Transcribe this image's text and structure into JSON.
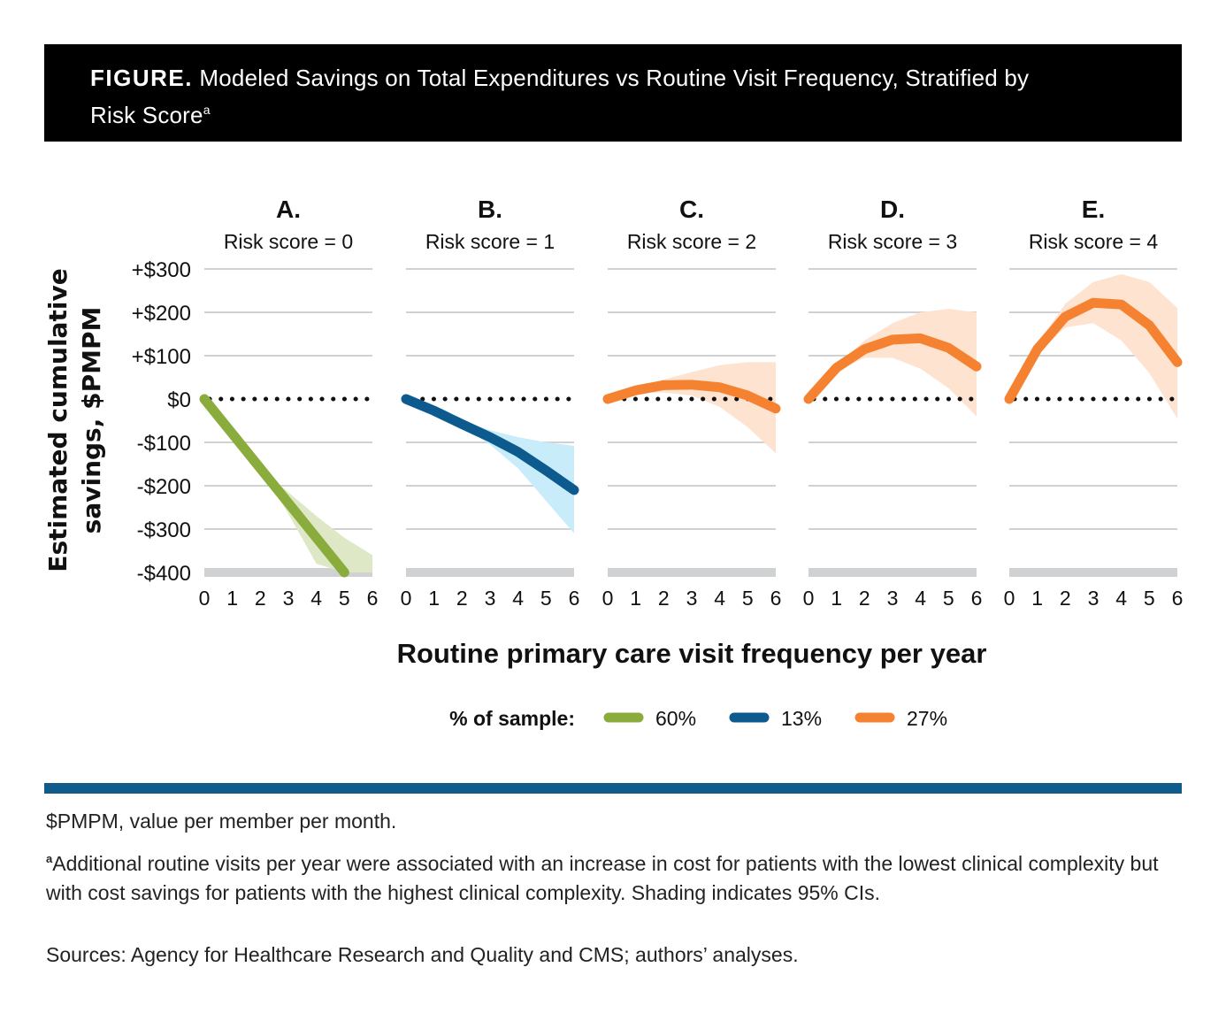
{
  "header": {
    "figure_label": "FIGURE.",
    "title": "Modeled Savings on Total Expenditures vs Routine Visit Frequency, Stratified by",
    "title_line2": "Risk Score",
    "title_superscript": "a"
  },
  "chart_data": {
    "type": "line",
    "title": "Modeled Savings on Total Expenditures vs Routine Visit Frequency, Stratified by Risk Score",
    "ylabel_line1": "Estimated cumulative",
    "ylabel_line2": "savings, $PMPM",
    "xlabel": "Routine primary care visit frequency per year",
    "ylim": [
      -400,
      300
    ],
    "yticks": [
      300,
      200,
      100,
      0,
      -100,
      -200,
      -300,
      -400
    ],
    "ytick_labels": [
      "+$300",
      "+$200",
      "+$100",
      "$0",
      "-$100",
      "-$200",
      "-$300",
      "-$400"
    ],
    "xlim": [
      0,
      6
    ],
    "xticks": [
      0,
      1,
      2,
      3,
      4,
      5,
      6
    ],
    "xtick_labels": [
      "0",
      "1",
      "2",
      "3",
      "4",
      "5",
      "6"
    ],
    "grid": true,
    "reference_line": {
      "y": 0,
      "style": "dotted"
    },
    "panels": [
      {
        "letter": "A.",
        "subtitle": "Risk score = 0",
        "color": "#8aac3c",
        "ci_color": "#dfe8c6",
        "x": [
          0,
          1,
          2,
          3,
          4,
          5
        ],
        "y": [
          0,
          -80,
          -160,
          -240,
          -320,
          -400
        ],
        "ci_x": [
          2,
          3,
          4,
          5,
          6
        ],
        "ci_upper": [
          -160,
          -215,
          -270,
          -320,
          -360
        ],
        "ci_lower": [
          -160,
          -265,
          -380,
          -400,
          -400
        ]
      },
      {
        "letter": "B.",
        "subtitle": "Risk score = 1",
        "color": "#0c5a8e",
        "ci_color": "#c8ecf9",
        "x": [
          0,
          1,
          2,
          3,
          4,
          5,
          6
        ],
        "y": [
          0,
          -27,
          -58,
          -88,
          -122,
          -165,
          -210
        ],
        "ci_x": [
          1,
          2,
          3,
          4,
          5,
          6
        ],
        "ci_upper": [
          -27,
          -52,
          -72,
          -88,
          -100,
          -108
        ],
        "ci_lower": [
          -27,
          -62,
          -105,
          -160,
          -235,
          -310
        ]
      },
      {
        "letter": "C.",
        "subtitle": "Risk score = 2",
        "color": "#f58230",
        "ci_color": "#fde3d0",
        "x": [
          0,
          1,
          2,
          3,
          4,
          5,
          6
        ],
        "y": [
          0,
          20,
          32,
          33,
          27,
          8,
          -22
        ],
        "ci_x": [
          0,
          1,
          2,
          3,
          4,
          5,
          6
        ],
        "ci_upper": [
          0,
          24,
          45,
          62,
          78,
          85,
          85
        ],
        "ci_lower": [
          0,
          14,
          15,
          8,
          -18,
          -65,
          -125
        ]
      },
      {
        "letter": "D.",
        "subtitle": "Risk score = 3",
        "color": "#f58230",
        "ci_color": "#fde3d0",
        "x": [
          0,
          1,
          2,
          3,
          4,
          5,
          6
        ],
        "y": [
          0,
          72,
          115,
          137,
          140,
          118,
          75
        ],
        "ci_x": [
          0,
          1,
          2,
          3,
          4,
          5,
          6
        ],
        "ci_upper": [
          0,
          78,
          135,
          175,
          200,
          208,
          200
        ],
        "ci_lower": [
          0,
          65,
          95,
          95,
          70,
          25,
          -40
        ]
      },
      {
        "letter": "E.",
        "subtitle": "Risk score = 4",
        "color": "#f58230",
        "ci_color": "#fde3d0",
        "x": [
          0,
          1,
          2,
          3,
          4,
          5,
          6
        ],
        "y": [
          0,
          115,
          190,
          222,
          218,
          170,
          85
        ],
        "ci_x": [
          0,
          1,
          2,
          3,
          4,
          5,
          6
        ],
        "ci_upper": [
          0,
          125,
          220,
          270,
          288,
          270,
          210
        ],
        "ci_lower": [
          0,
          105,
          165,
          175,
          135,
          60,
          -45
        ]
      }
    ],
    "legend": {
      "title": "% of sample:",
      "placement": "bottom-center",
      "entries": [
        {
          "label": "60%",
          "color": "#8aac3c"
        },
        {
          "label": "13%",
          "color": "#0c5a8e"
        },
        {
          "label": "27%",
          "color": "#f58230"
        }
      ]
    }
  },
  "footnotes": {
    "abbrev": "$PMPM, value per member per month.",
    "note_marker": "a",
    "note_text": "Additional routine visits per year were associated with an increase in cost for patients with the lowest clinical complexity but with cost savings for patients with the highest clinical complexity. Shading indicates 95% CIs.",
    "sources": "Sources: Agency for Healthcare Research and Quality and CMS; authors’ analyses."
  }
}
